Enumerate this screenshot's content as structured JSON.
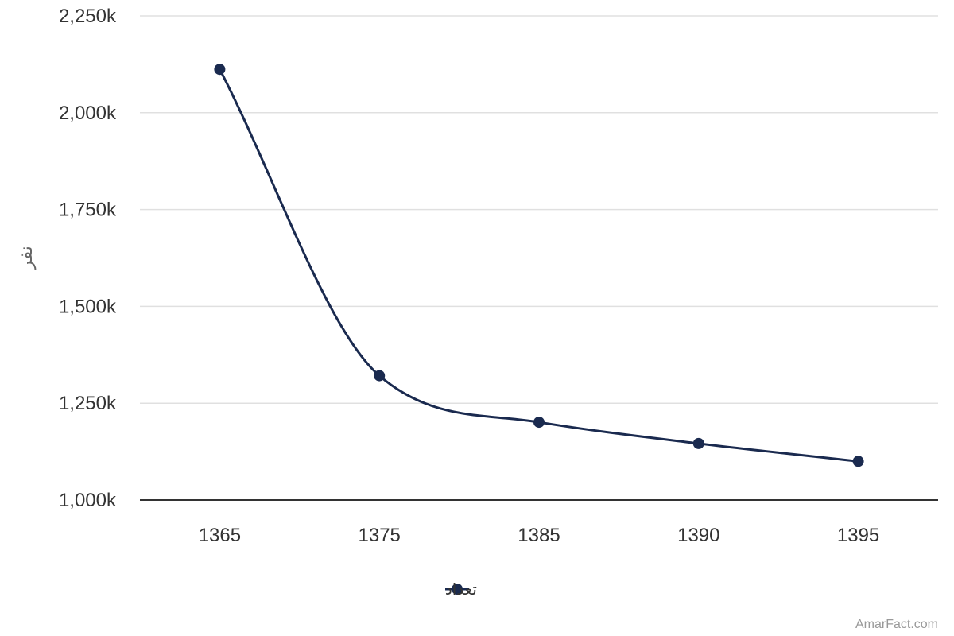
{
  "chart_data": {
    "type": "line",
    "smooth": true,
    "x": [
      "1365",
      "1375",
      "1385",
      "1390",
      "1395"
    ],
    "series": [
      {
        "name": "تعداد",
        "values": [
          2112000,
          1321000,
          1201000,
          1146000,
          1100000
        ]
      }
    ],
    "ylabel": "نفر",
    "ylim": [
      1000000,
      2250000
    ],
    "yticks": [
      1000000,
      1250000,
      1500000,
      1750000,
      2000000,
      2250000
    ],
    "ytick_labels": [
      "1,000k",
      "1,250k",
      "1,500k",
      "1,750k",
      "2,000k",
      "2,250k"
    ],
    "grid": true,
    "legend": "bottom-center",
    "color": "#1a2a4f"
  },
  "credit": "AmarFact.com"
}
